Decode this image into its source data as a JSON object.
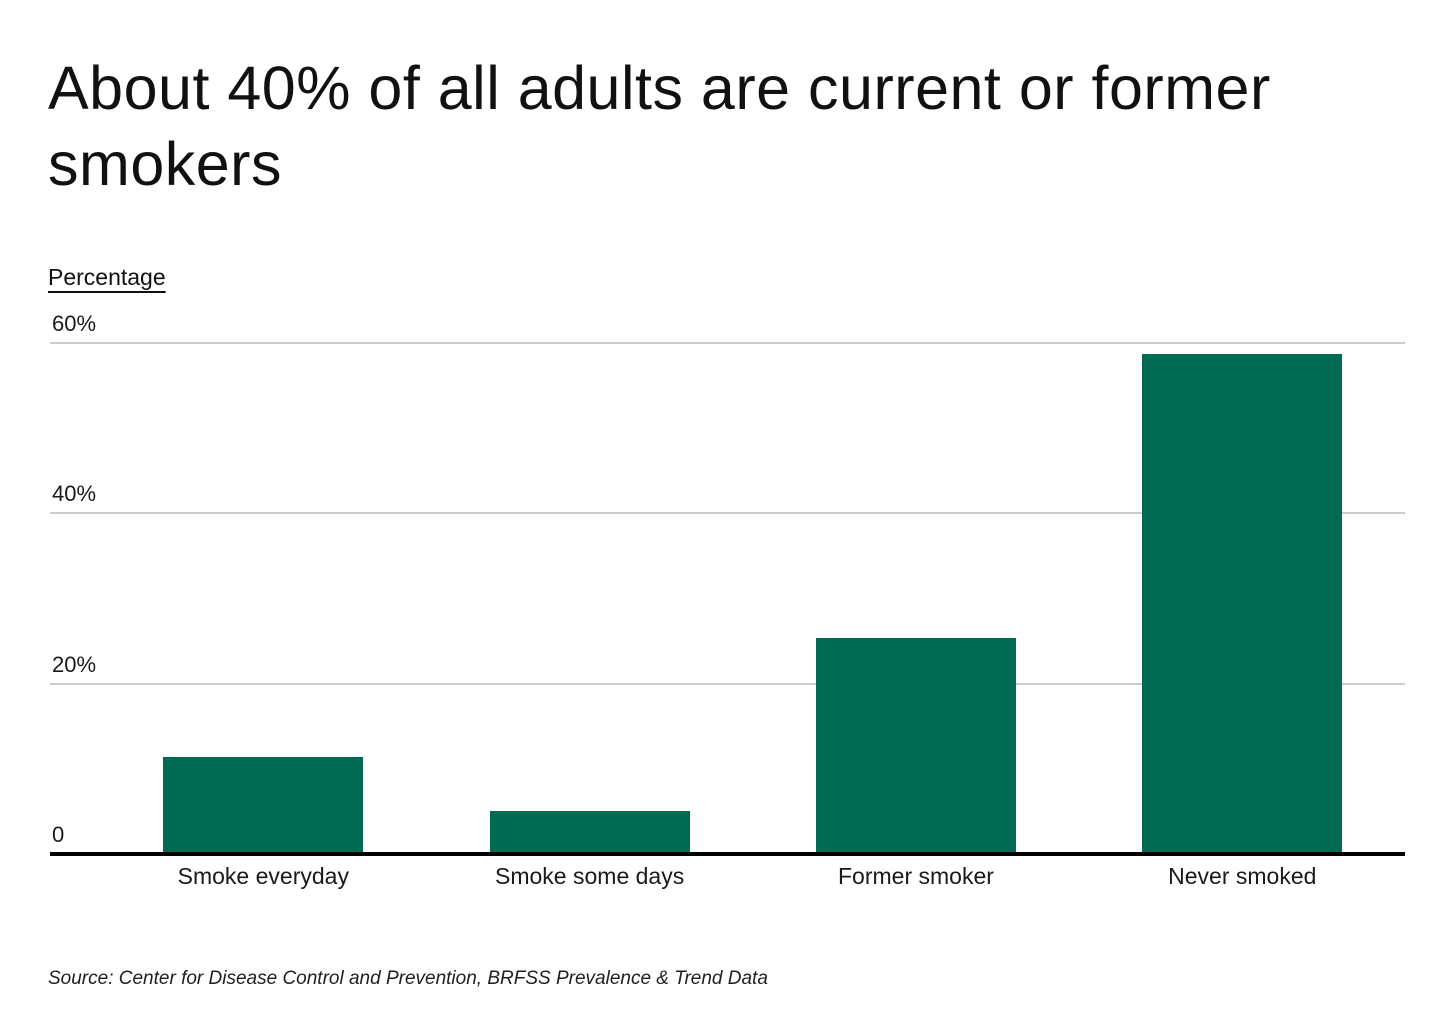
{
  "header": {
    "title": "About 40% of all adults are current or former smokers"
  },
  "chart_data": {
    "type": "bar",
    "title": "About 40% of all adults are current or former smokers",
    "ylabel": "Percentage",
    "xlabel": "",
    "categories": [
      "Smoke everyday",
      "Smoke some days",
      "Former smoker",
      "Never smoked"
    ],
    "values": [
      11.4,
      5.1,
      25.4,
      58.7
    ],
    "ylim": [
      0,
      60
    ],
    "yticks": [
      {
        "label": "60%",
        "value": 60
      },
      {
        "label": "40%",
        "value": 40
      },
      {
        "label": "20%",
        "value": 20
      },
      {
        "label": "0",
        "value": 0
      }
    ],
    "grid": "horizontal-gridlines-on",
    "legend": "none",
    "colors": {
      "bar": "#006a52",
      "gridline": "#cccccc",
      "axis_line": "#000000",
      "text": "#1a1a1a"
    }
  },
  "footer": {
    "source": "Source: Center for Disease Control and Prevention, BRFSS Prevalence & Trend Data"
  }
}
